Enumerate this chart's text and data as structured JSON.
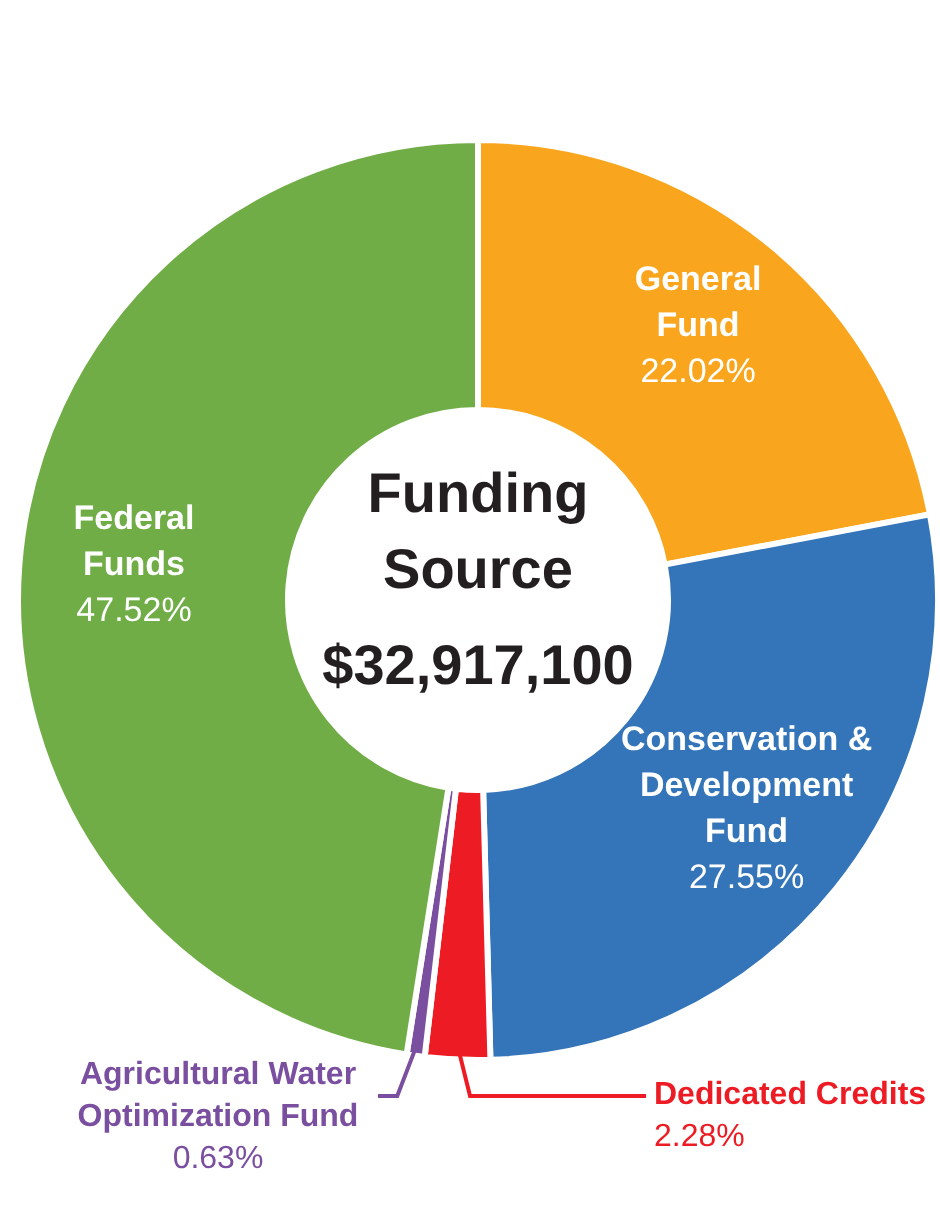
{
  "chart_data": {
    "type": "donut",
    "title": "Funding Source",
    "subtitle": "$32,917,100",
    "categories": [
      "General Fund",
      "Conservation & Development Fund",
      "Dedicated Credits",
      "Agricultural Water Optimization Fund",
      "Federal Funds"
    ],
    "values": [
      22.02,
      27.55,
      2.28,
      0.63,
      47.52
    ],
    "colors": [
      "#f9a61e",
      "#3474b8",
      "#ed1c24",
      "#7a4fa0",
      "#71ad47"
    ],
    "value_labels": [
      "22.02%",
      "27.55%",
      "2.28%",
      "0.63%",
      "47.52%"
    ]
  }
}
